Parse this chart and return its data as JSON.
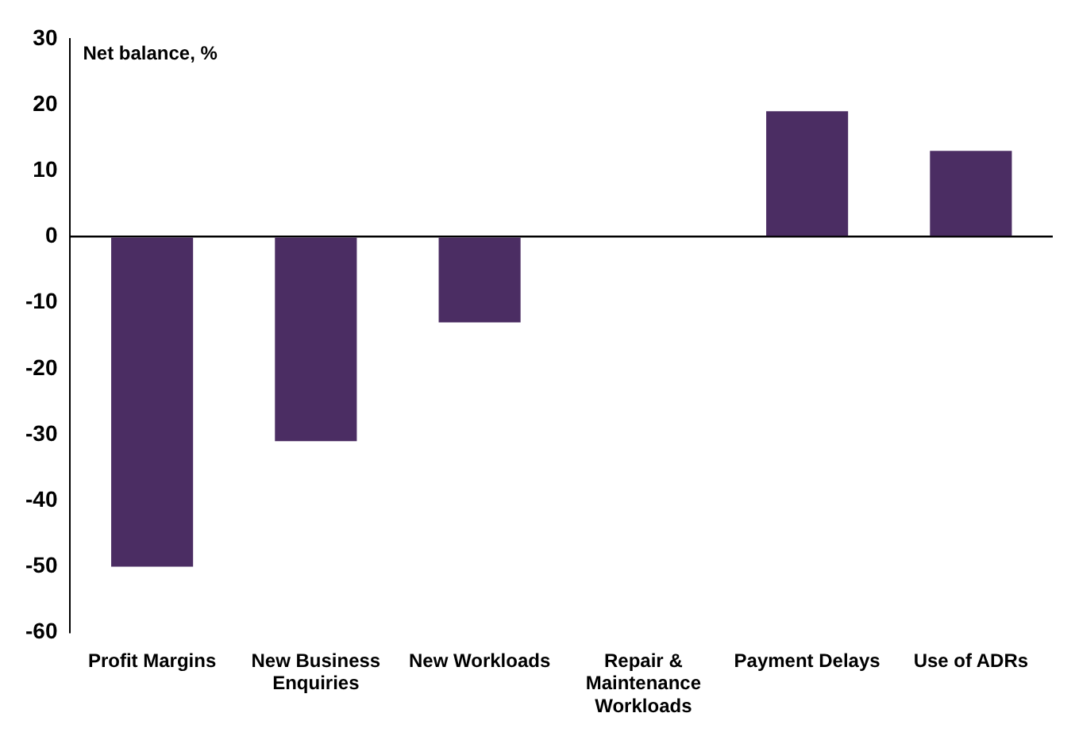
{
  "chart_data": {
    "type": "bar",
    "ylabel": "Net balance, %",
    "categories": [
      "Profit Margins",
      "New Business Enquiries",
      "New Workloads",
      "Repair & Maintenance Workloads",
      "Payment Delays",
      "Use of ADRs"
    ],
    "values": [
      -50,
      -31,
      -13,
      0,
      19,
      13
    ],
    "color": "#4b2d63",
    "ylim": [
      -60,
      30
    ],
    "yticks": [
      -60,
      -50,
      -40,
      -30,
      -20,
      -10,
      0,
      10,
      20,
      30
    ]
  }
}
